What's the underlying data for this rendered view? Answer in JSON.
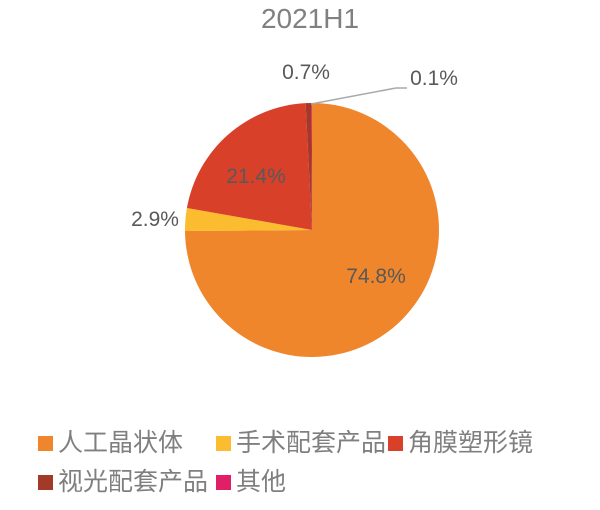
{
  "title": "2021H1",
  "chart_data": {
    "type": "pie",
    "title": "2021H1",
    "categories": [
      "人工晶状体",
      "手术配套产品",
      "角膜塑形镜",
      "视光配套产品",
      "其他"
    ],
    "values": [
      74.8,
      2.9,
      21.4,
      0.7,
      0.1
    ],
    "value_labels": [
      "74.8%",
      "2.9%",
      "21.4%",
      "0.7%",
      "0.1%"
    ],
    "colors": [
      "#F0862B",
      "#FBBD2F",
      "#D8402A",
      "#A33A28",
      "#E01F66"
    ],
    "start_angle_deg": 0,
    "direction": "clockwise",
    "legend_position": "bottom",
    "legend_rows": [
      [
        "人工晶状体",
        "手术配套产品",
        "角膜塑形镜"
      ],
      [
        "视光配套产品",
        "其他"
      ]
    ]
  },
  "style": {
    "title_color": "#808080",
    "label_color": "#595959",
    "legend_text_color": "#7F7F7F",
    "leader_line_color": "#A9A9A9"
  }
}
